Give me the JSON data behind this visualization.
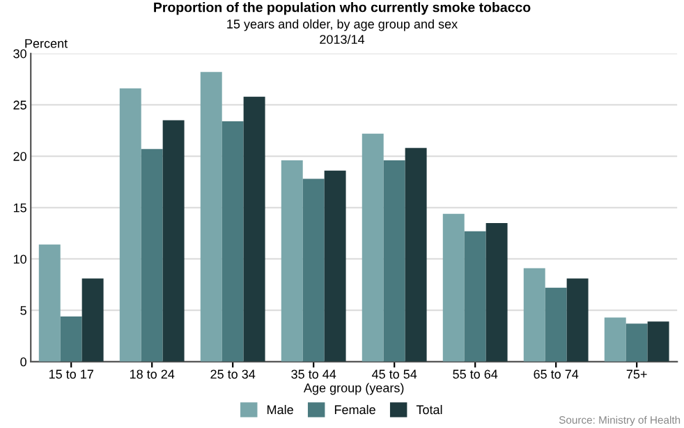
{
  "chart_data": {
    "type": "bar",
    "title": "Proportion of the population who currently smoke tobacco",
    "subtitle": "15 years and older, by age group and sex\n2013/14",
    "xlabel": "Age group (years)",
    "ylabel": "Percent",
    "categories": [
      "15 to 17",
      "18 to 24",
      "25 to 34",
      "35 to 44",
      "45 to 54",
      "55 to 64",
      "65 to 74",
      "75+"
    ],
    "series": [
      {
        "name": "Male",
        "color": "#7aa7ab",
        "values": [
          11.4,
          26.6,
          28.2,
          19.6,
          22.2,
          14.4,
          9.1,
          4.3
        ]
      },
      {
        "name": "Female",
        "color": "#4a7a7f",
        "values": [
          4.4,
          20.7,
          23.4,
          17.8,
          19.6,
          12.7,
          7.2,
          3.7
        ]
      },
      {
        "name": "Total",
        "color": "#1f3a3e",
        "values": [
          8.1,
          23.5,
          25.8,
          18.6,
          20.8,
          13.5,
          8.1,
          3.9
        ]
      }
    ],
    "ylim": [
      0,
      30
    ],
    "yticks": [
      0,
      5,
      10,
      15,
      20,
      25,
      30
    ],
    "grid": "y",
    "legend": "bottom",
    "annotations": [
      "Source: Ministry of Health"
    ]
  }
}
